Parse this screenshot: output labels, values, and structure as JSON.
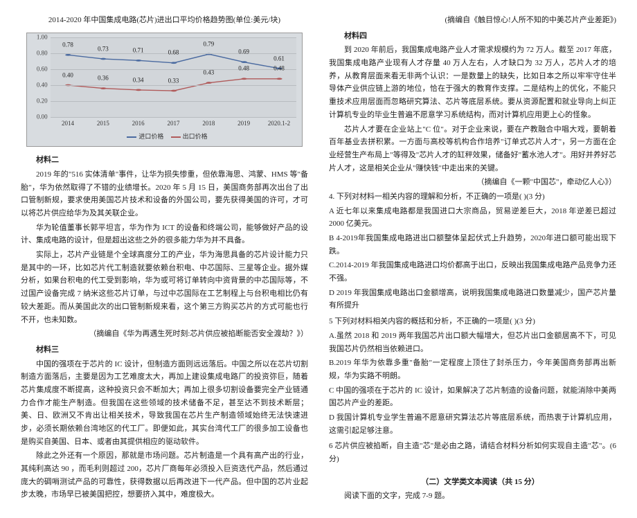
{
  "left": {
    "chart_title": "2014-2020 年中国集成电路(芯片)进出口平均价格趋势图(单位:美元/块)",
    "chart": {
      "ylim": [
        0,
        1.0
      ],
      "yticks": [
        0.0,
        0.2,
        0.4,
        0.6,
        0.8,
        1.0
      ],
      "xlabels": [
        "2014",
        "2015",
        "2016",
        "2017",
        "2018",
        "2019",
        "2020.1-2"
      ],
      "series1": {
        "name": "进口价格",
        "color": "#4a6aa0",
        "values": [
          0.78,
          0.73,
          0.71,
          0.68,
          0.79,
          0.69,
          0.61
        ],
        "labels": [
          "0.78",
          "0.73",
          "0.71",
          "0.68",
          "0.79",
          "0.69",
          "0.61"
        ]
      },
      "series2": {
        "name": "出口价格",
        "color": "#b05a5a",
        "values": [
          0.4,
          0.36,
          0.34,
          0.33,
          0.43,
          0.48,
          0.48
        ],
        "labels": [
          "0.40",
          "0.36",
          "0.34",
          "0.33",
          "0.43",
          "0.48",
          "0.48"
        ]
      },
      "legend1": "进口价格",
      "legend2": "出口价格",
      "grid_color": "#b8bcc0",
      "bg": "#d2d6da"
    },
    "h_m2": "材料二",
    "m2_p1": "2019 年的\"516 实体清单\"事件，让华为损失惨重，但依靠海思、鸿蒙、HMS 等\"备胎\"，华为依然取得了不错的业绩增长。2020 年 5 月 15 日，美国商务部再次出台了出口管制新规，要求使用美国芯片技术和设备的外国公司，要先获得美国的许可，才可以将芯片供应给华为及其关联企业。",
    "m2_p2": "华为轮值董事长郭平坦言，华为作为 ICT 的设备和终端公司，能够做好产品的设计、集成电路的设计，但是超出这些之外的很多能力华为并不具备。",
    "m2_p3": "实际上，芯片产业链是个全球高度分工的产业，华为海思具备的芯片设计能力只是其中的一环，比如芯片代工制造就要依赖台积电、中芯国际、三星等企业。据外媒分析，如果台积电的代工受到影响，华为或可将订单转向中资背景的中芯国际等，不过国产设备完成 7 纳米这些芯片订单，与过中芯国际在工艺制程上与台积电相比仍有较大差距。而从美国此次的出口管制新规来看，这个第三方购买芯片的方式可能也行不开，也未知数。",
    "m2_src": "（摘编自《华为再遇生死时刻:芯片供应被掐断能否安全渡劫？》）",
    "h_m3": "材料三",
    "m3_p1": "中国的强项在于芯片的 IC 设计，但制造方面则远远落后。中国之所以在芯片切割制造方面落后，主要是因为工艺难度太大，再加上建设集成电路厂的投资弥巨，随着芯片集成度不断提高，这种投资只会不断加大；再加上很多切割设备要完全产业链通力合作才能生产制造。但我国在这些领域的技术储备不足，甚至达不到技术断层；美、日、欧洲又不肯出让相关技术，导致我国在芯片生产制造领域始终无法快速进步，必须长期依赖台湾地区的代工厂。即便如此，其实台湾代工厂的很多加工设备也是购买自美国、日本、或者由其提供相应的驱动软件。",
    "m3_p2": "除此之外还有一个原因，那就是市场问题。芯片制造是一个具有高产出的行业，其纯利高达 90 ，而毛利则超过 200，芯片厂商每年必须投入巨资迭代产品，然后通过庞大的碉哨测试产品的可靠性，获得数据以后再改进下一代产品。但中国的芯片业起步太晚，市场早已被美国把控，想要挤入其中，难度极大。"
  },
  "right": {
    "src0": "(摘编自《触目惊心!人所不知的中美芯片产业差距》)",
    "h_m4": "材料四",
    "m4_p1": "到 2020 年前后，我国集成电路产业人才需求规模约为 72 万人。截至 2017 年底，我国集成电路产业现有人才存量 40 万人左右，人才缺口为 32 万人，芯片人才的培养，从教育层面来看无非两个认识：一是数量上的缺失，比如日本之所以牢牢守住半导体产业供应链上游的地位，恰在于强大的教育作支撑。二是结构上的优化，不能只重技术应用层面而忽略研究算法、芯片等底层系统。要从资源配置和就业导向上纠正计算机专业的毕业生普遍不愿意学习系统结构，而对计算机应用更上心的怪象。",
    "m4_p2": "芯片人才要在企业站上\"C 位\"。对于企业来说，要在产教融合中唱大戏，要朝着百年基业去拼积累。一方面与高校等机构合作培养\"订单式芯片人才\"，另一方面在企业经营生产布局上\"等得及\"芯片人才的缸秤效果，储备好\"蓄水池人才\"。用好并养好芯片人才，这是相关企业从\"赚快钱\"中走出来的关键。",
    "m4_src": "（摘编自《一颗\"中国芯\"，牵动亿人心》）",
    "q4": "4. 下列对材料一相关内容的理解和分析，不正确的一项是(  )(3 分)",
    "q4a": "A 近七年以来集成电路都是我国进口大宗商品，贸易逆差巨大，2018 年逆差已超过 2000 亿美元。",
    "q4b": "B    4-2019年我国集成电路进出口额整体呈起伏式上升趋势，2020年进口额可能出现下跌。",
    "q4c": "C.2014-2019 年我国集成电路进口均价都高于出口，反映出我国集成电路产品竞争力还不强。",
    "q4d": "D 2019 年我国集成电路出口金额增高，说明我国集成电路进口数量减少，国产芯片量有所提升",
    "q5": "5 下列对材料相关内容的概括和分析，不正确的一项是(  )(3 分)",
    "q5a": "A.虽然 2018 和 2019 两年我国芯片出口额大幅增大，但芯片出口金额居高不下，可见我国芯片仍然相当依赖进口。",
    "q5b": "B.2019 年华为依靠多重\"备胎\"一定程度上顶住了封杀压力，今年美国商务部再出新规，华为实路不明朗。",
    "q5c": "C 中国的强项在于芯片的 IC 设计，如果解决了芯片制造的设备问题，就能消除中美两国芯片产业的差距。",
    "q5d": "D 我国计算机专业学生普遍不愿意研究算法芯片等底层系统，而热衷于计算机应用，这需引起足够注意。",
    "q6": "6 芯片供应被掐断，自主造\"芯\"是必由之路，请结合材料分析如何实现自主造\"芯\"。(6 分)",
    "sec2_title": "（二）文学类文本阅读（共 15 分）",
    "sec2_sub": "阅读下面的文字，完成 7-9 题。"
  }
}
